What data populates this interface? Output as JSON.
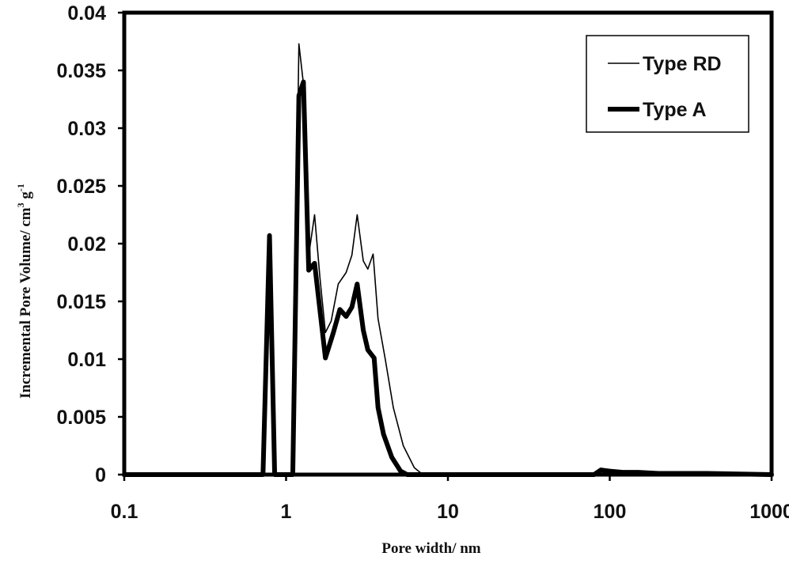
{
  "chart_data": {
    "type": "line",
    "xlabel": "Pore width/ nm",
    "ylabel": "Incremental Pore Volume/ cm",
    "ylabel_sup1": "3",
    "ylabel_mid": " g",
    "ylabel_sup2": "-1",
    "xscale": "log",
    "xlim": [
      0.1,
      1000
    ],
    "ylim": [
      0,
      0.04
    ],
    "x_ticks": [
      0.1,
      1,
      10,
      100,
      1000
    ],
    "x_tick_labels": [
      "0.1",
      "1",
      "10",
      "100",
      "1000"
    ],
    "y_ticks": [
      0,
      0.005,
      0.01,
      0.015,
      0.02,
      0.025,
      0.03,
      0.035,
      0.04
    ],
    "y_tick_labels": [
      "0",
      "0.005",
      "0.01",
      "0.015",
      "0.02",
      "0.025",
      "0.03",
      "0.035",
      "0.04"
    ],
    "grid": false,
    "legend_position": "top-right",
    "series": [
      {
        "name": "Type RD",
        "line": "thin",
        "points": [
          [
            0.1,
            0
          ],
          [
            1.1,
            0
          ],
          [
            1.2,
            0.0373
          ],
          [
            1.3,
            0.033
          ],
          [
            1.38,
            0.019
          ],
          [
            1.5,
            0.0225
          ],
          [
            1.62,
            0.017
          ],
          [
            1.75,
            0.0123
          ],
          [
            1.9,
            0.0133
          ],
          [
            2.1,
            0.0165
          ],
          [
            2.35,
            0.0175
          ],
          [
            2.55,
            0.019
          ],
          [
            2.75,
            0.0225
          ],
          [
            3.0,
            0.0185
          ],
          [
            3.2,
            0.0178
          ],
          [
            3.45,
            0.0191
          ],
          [
            3.7,
            0.0135
          ],
          [
            4.1,
            0.01
          ],
          [
            4.6,
            0.0058
          ],
          [
            5.3,
            0.0025
          ],
          [
            6.2,
            0.0006
          ],
          [
            7.0,
            0
          ],
          [
            80,
            0
          ],
          [
            88,
            0.0003
          ],
          [
            100,
            0.0002
          ],
          [
            120,
            0.0002
          ],
          [
            150,
            0.0001
          ],
          [
            200,
            0.0001
          ],
          [
            400,
            0.0001
          ],
          [
            1000,
            0
          ]
        ]
      },
      {
        "name": "Type A",
        "line": "thick",
        "points": [
          [
            0.1,
            0
          ],
          [
            0.72,
            0
          ],
          [
            0.79,
            0.0207
          ],
          [
            0.85,
            0
          ],
          [
            1.1,
            0
          ],
          [
            1.2,
            0.0328
          ],
          [
            1.28,
            0.034
          ],
          [
            1.38,
            0.0177
          ],
          [
            1.5,
            0.0183
          ],
          [
            1.75,
            0.0101
          ],
          [
            1.95,
            0.0122
          ],
          [
            2.15,
            0.0143
          ],
          [
            2.35,
            0.0137
          ],
          [
            2.55,
            0.0145
          ],
          [
            2.75,
            0.0165
          ],
          [
            3.0,
            0.0125
          ],
          [
            3.2,
            0.0108
          ],
          [
            3.5,
            0.0101
          ],
          [
            3.7,
            0.0058
          ],
          [
            4.0,
            0.0035
          ],
          [
            4.5,
            0.0015
          ],
          [
            5.1,
            0.0003
          ],
          [
            5.6,
            0
          ],
          [
            80,
            0
          ],
          [
            88,
            0.0004
          ],
          [
            100,
            0.0003
          ],
          [
            120,
            0.0002
          ],
          [
            150,
            0.0002
          ],
          [
            200,
            0.0001
          ],
          [
            400,
            0.0001
          ],
          [
            1000,
            0
          ]
        ]
      }
    ]
  }
}
